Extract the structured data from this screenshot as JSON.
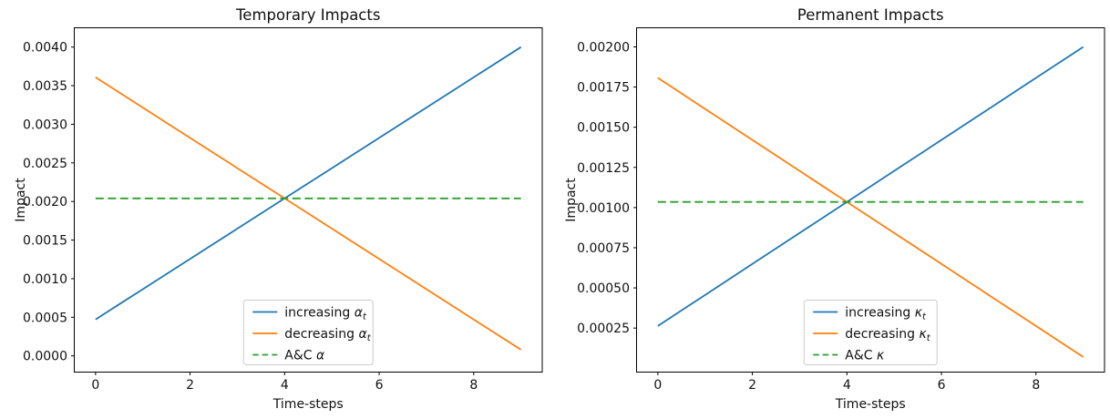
{
  "figure": {
    "background": "#ffffff",
    "text_color": "#111111",
    "spine_color": "#000000",
    "legend_border_color": "#cccccc"
  },
  "chart_data": [
    {
      "type": "line",
      "title": "Temporary Impacts",
      "xlabel": "Time-steps",
      "ylabel": "Impact",
      "grid": false,
      "x": [
        0,
        1,
        2,
        3,
        4,
        5,
        6,
        7,
        8,
        9
      ],
      "xlim": [
        -0.45,
        9.45
      ],
      "ylim": [
        -0.00021,
        0.00425
      ],
      "xticks": [
        {
          "value": 0,
          "label": "0"
        },
        {
          "value": 2,
          "label": "2"
        },
        {
          "value": 4,
          "label": "4"
        },
        {
          "value": 6,
          "label": "6"
        },
        {
          "value": 8,
          "label": "8"
        }
      ],
      "yticks": [
        {
          "value": 0.0,
          "label": "0.0000"
        },
        {
          "value": 0.0005,
          "label": "0.0005"
        },
        {
          "value": 0.001,
          "label": "0.0010"
        },
        {
          "value": 0.0015,
          "label": "0.0015"
        },
        {
          "value": 0.002,
          "label": "0.0020"
        },
        {
          "value": 0.0025,
          "label": "0.0025"
        },
        {
          "value": 0.003,
          "label": "0.0030"
        },
        {
          "value": 0.0035,
          "label": "0.0035"
        },
        {
          "value": 0.004,
          "label": "0.0040"
        }
      ],
      "series": [
        {
          "id": "increasing-alpha",
          "label_text": "increasing ",
          "label_symbol": "α",
          "label_subscript": "t",
          "color": "#1f77b4",
          "line_style": "solid",
          "values": [
            0.000472,
            0.000864,
            0.001256,
            0.001648,
            0.00204,
            0.002432,
            0.002824,
            0.003216,
            0.003608,
            0.004
          ]
        },
        {
          "id": "decreasing-alpha",
          "label_text": "decreasing ",
          "label_symbol": "α",
          "label_subscript": "t",
          "color": "#ff7f0e",
          "line_style": "solid",
          "values": [
            0.003608,
            0.003216,
            0.002824,
            0.002432,
            0.00204,
            0.001648,
            0.001256,
            0.000864,
            0.000472,
            8e-05
          ]
        },
        {
          "id": "ac-alpha",
          "label_text": "A&C ",
          "label_symbol": "α",
          "label_subscript": "",
          "color": "#2ca02c",
          "line_style": "dashed",
          "values": [
            0.00204,
            0.00204,
            0.00204,
            0.00204,
            0.00204,
            0.00204,
            0.00204,
            0.00204,
            0.00204,
            0.00204
          ]
        }
      ],
      "legend": {
        "position": "lower center"
      }
    },
    {
      "type": "line",
      "title": "Permanent Impacts",
      "xlabel": "Time-steps",
      "ylabel": "Impact",
      "grid": false,
      "x": [
        0,
        1,
        2,
        3,
        4,
        5,
        6,
        7,
        8,
        9
      ],
      "xlim": [
        -0.45,
        9.45
      ],
      "ylim": [
        -2.4e-05,
        0.002119
      ],
      "xticks": [
        {
          "value": 0,
          "label": "0"
        },
        {
          "value": 2,
          "label": "2"
        },
        {
          "value": 4,
          "label": "4"
        },
        {
          "value": 6,
          "label": "6"
        },
        {
          "value": 8,
          "label": "8"
        }
      ],
      "yticks": [
        {
          "value": 0.00025,
          "label": "0.00025"
        },
        {
          "value": 0.0005,
          "label": "0.00050"
        },
        {
          "value": 0.00075,
          "label": "0.00075"
        },
        {
          "value": 0.001,
          "label": "0.00100"
        },
        {
          "value": 0.00125,
          "label": "0.00125"
        },
        {
          "value": 0.0015,
          "label": "0.00150"
        },
        {
          "value": 0.00175,
          "label": "0.00175"
        },
        {
          "value": 0.002,
          "label": "0.00200"
        }
      ],
      "series": [
        {
          "id": "increasing-kappa",
          "label_text": "increasing ",
          "label_symbol": "κ",
          "label_subscript": "t",
          "color": "#1f77b4",
          "line_style": "solid",
          "values": [
            0.000263,
            0.000456,
            0.000649,
            0.000842,
            0.001035,
            0.001228,
            0.001421,
            0.001614,
            0.001807,
            0.002
          ]
        },
        {
          "id": "decreasing-kappa",
          "label_text": "decreasing ",
          "label_symbol": "κ",
          "label_subscript": "t",
          "color": "#ff7f0e",
          "line_style": "solid",
          "values": [
            0.001807,
            0.001614,
            0.001421,
            0.001228,
            0.001035,
            0.000842,
            0.000649,
            0.000456,
            0.000263,
            7e-05
          ]
        },
        {
          "id": "ac-kappa",
          "label_text": "A&C ",
          "label_symbol": "κ",
          "label_subscript": "",
          "color": "#2ca02c",
          "line_style": "dashed",
          "values": [
            0.001035,
            0.001035,
            0.001035,
            0.001035,
            0.001035,
            0.001035,
            0.001035,
            0.001035,
            0.001035,
            0.001035
          ]
        }
      ],
      "legend": {
        "position": "lower center"
      }
    }
  ]
}
